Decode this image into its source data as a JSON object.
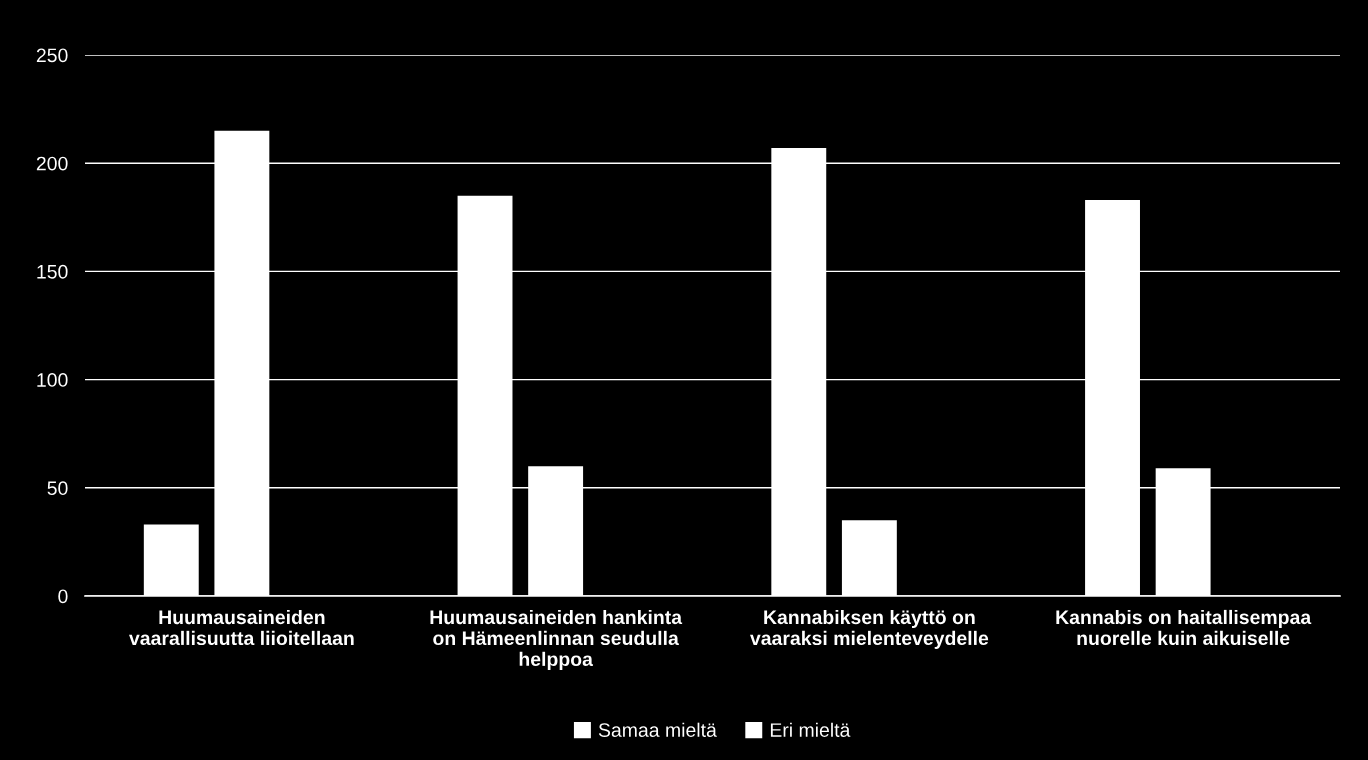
{
  "chart_data": {
    "type": "bar",
    "categories": [
      "Huumausaineiden\nvaarallisuutta liioitellaan",
      "Huumausaineiden hankinta\non Hämeenlinnan seudulla\nhelppoa",
      "Kannabiksen käyttö on\nvaaraksi mielenteveydelle",
      "Kannabis on haitallisempaa\nnuorelle kuin aikuiselle"
    ],
    "series": [
      {
        "name": "Samaa mieltä",
        "color": "#ffffff",
        "values": [
          33,
          185,
          207,
          183
        ]
      },
      {
        "name": "Eri mieltä",
        "color": "#ffffff",
        "values": [
          215,
          60,
          35,
          59
        ]
      }
    ],
    "ylim": [
      0,
      250
    ],
    "yticks": [
      0,
      50,
      100,
      150,
      200,
      250
    ],
    "grid": "y",
    "legend": "bottom"
  }
}
